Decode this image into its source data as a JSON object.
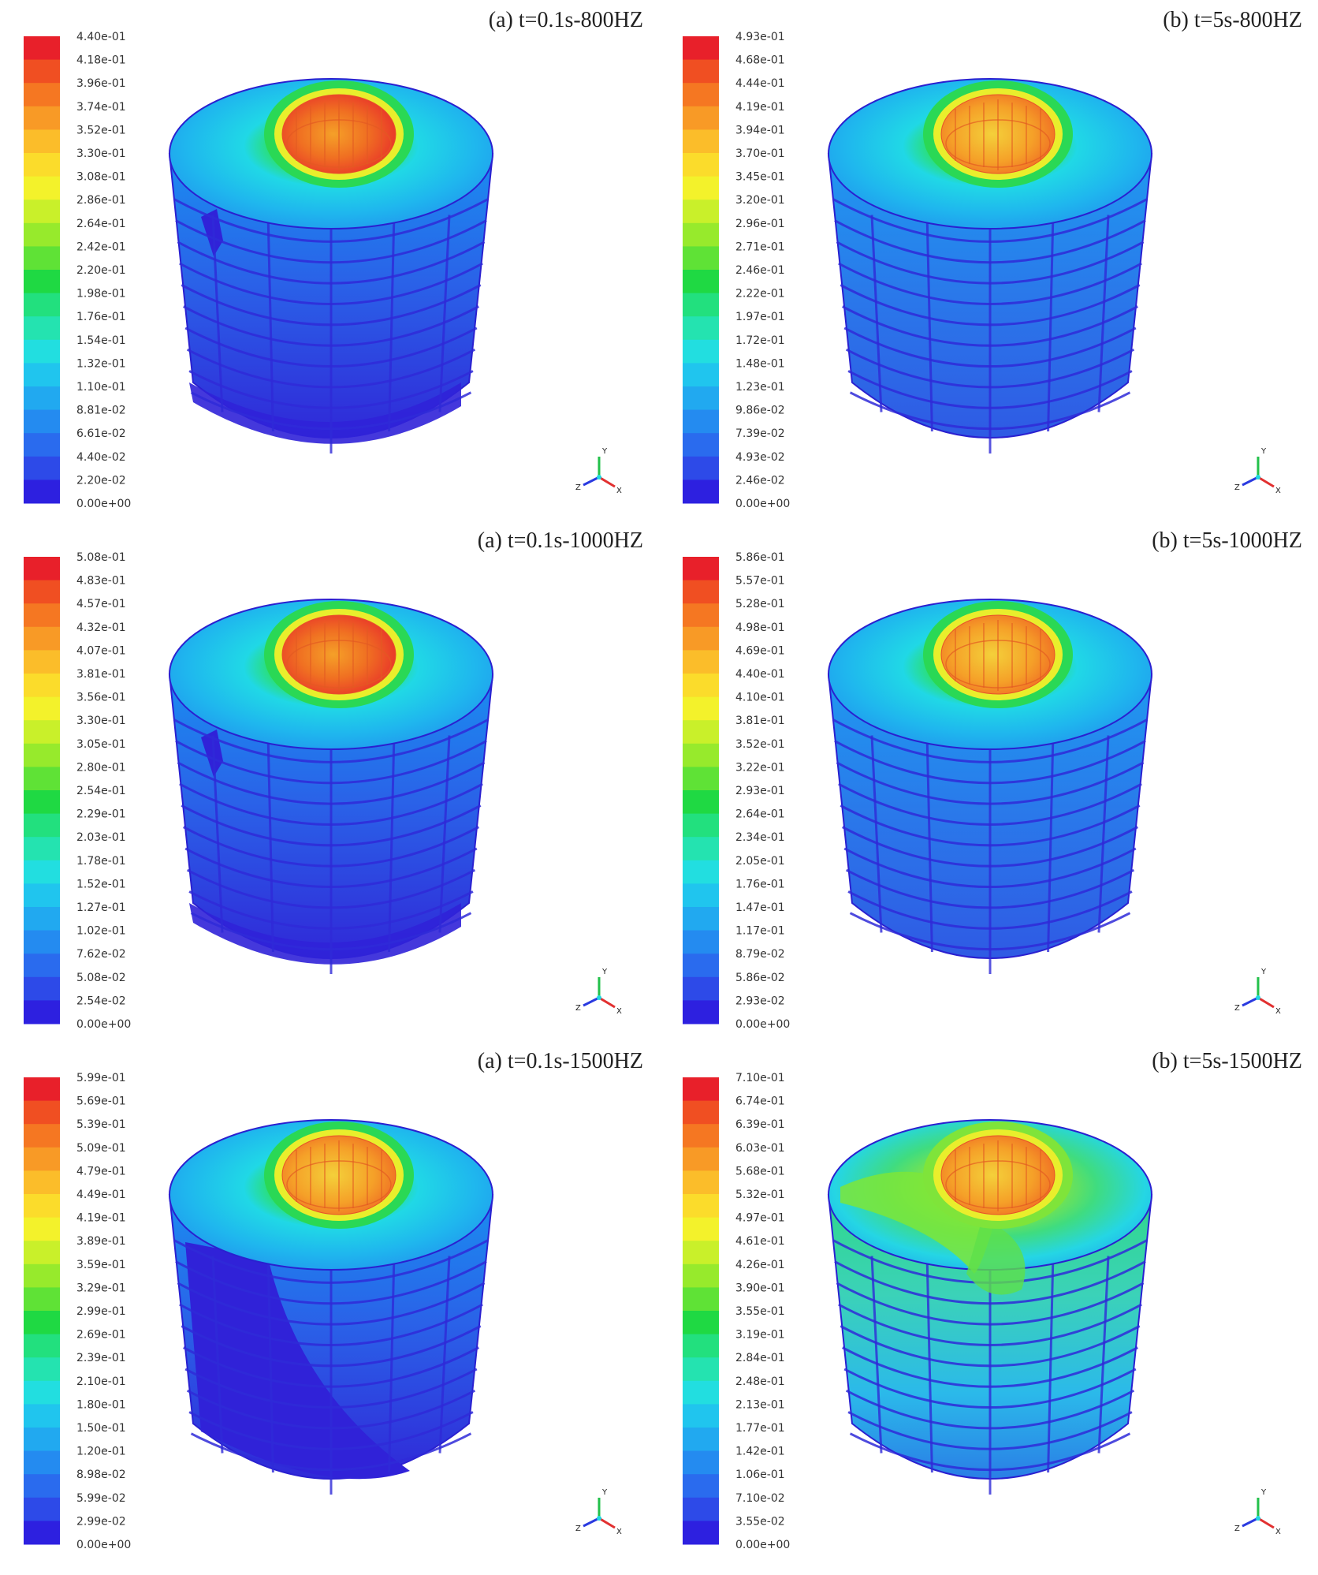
{
  "figure": {
    "panels": [
      {
        "title": "(a) t=0.1s-800HZ",
        "ticks": [
          "4.40e-01",
          "4.18e-01",
          "3.96e-01",
          "3.74e-01",
          "3.52e-01",
          "3.30e-01",
          "3.08e-01",
          "2.86e-01",
          "2.64e-01",
          "2.42e-01",
          "2.20e-01",
          "1.98e-01",
          "1.76e-01",
          "1.54e-01",
          "1.32e-01",
          "1.10e-01",
          "8.81e-02",
          "6.61e-02",
          "4.40e-02",
          "2.20e-02",
          "0.00e+00"
        ],
        "pattern": "low-blotch"
      },
      {
        "title": "(b) t=5s-800HZ",
        "ticks": [
          "4.93e-01",
          "4.68e-01",
          "4.44e-01",
          "4.19e-01",
          "3.94e-01",
          "3.70e-01",
          "3.45e-01",
          "3.20e-01",
          "2.96e-01",
          "2.71e-01",
          "2.46e-01",
          "2.22e-01",
          "1.97e-01",
          "1.72e-01",
          "1.48e-01",
          "1.23e-01",
          "9.86e-02",
          "7.39e-02",
          "4.93e-02",
          "2.46e-02",
          "0.00e+00"
        ],
        "pattern": "uniform"
      },
      {
        "title": "(a) t=0.1s-1000HZ",
        "ticks": [
          "5.08e-01",
          "4.83e-01",
          "4.57e-01",
          "4.32e-01",
          "4.07e-01",
          "3.81e-01",
          "3.56e-01",
          "3.30e-01",
          "3.05e-01",
          "2.80e-01",
          "2.54e-01",
          "2.29e-01",
          "2.03e-01",
          "1.78e-01",
          "1.52e-01",
          "1.27e-01",
          "1.02e-01",
          "7.62e-02",
          "5.08e-02",
          "2.54e-02",
          "0.00e+00"
        ],
        "pattern": "low-blotch"
      },
      {
        "title": "(b) t=5s-1000HZ",
        "ticks": [
          "5.86e-01",
          "5.57e-01",
          "5.28e-01",
          "4.98e-01",
          "4.69e-01",
          "4.40e-01",
          "4.10e-01",
          "3.81e-01",
          "3.52e-01",
          "3.22e-01",
          "2.93e-01",
          "2.64e-01",
          "2.34e-01",
          "2.05e-01",
          "1.76e-01",
          "1.47e-01",
          "1.17e-01",
          "8.79e-02",
          "5.86e-02",
          "2.93e-02",
          "0.00e+00"
        ],
        "pattern": "uniform"
      },
      {
        "title": "(a) t=0.1s-1500HZ",
        "ticks": [
          "5.99e-01",
          "5.69e-01",
          "5.39e-01",
          "5.09e-01",
          "4.79e-01",
          "4.49e-01",
          "4.19e-01",
          "3.89e-01",
          "3.59e-01",
          "3.29e-01",
          "2.99e-01",
          "2.69e-01",
          "2.39e-01",
          "2.10e-01",
          "1.80e-01",
          "1.50e-01",
          "1.20e-01",
          "8.98e-02",
          "5.99e-02",
          "2.99e-02",
          "0.00e+00"
        ],
        "pattern": "large-blotch"
      },
      {
        "title": "(b) t=5s-1500HZ",
        "ticks": [
          "7.10e-01",
          "6.74e-01",
          "6.39e-01",
          "6.03e-01",
          "5.68e-01",
          "5.32e-01",
          "4.97e-01",
          "4.61e-01",
          "4.26e-01",
          "3.90e-01",
          "3.55e-01",
          "3.19e-01",
          "2.84e-01",
          "2.48e-01",
          "2.13e-01",
          "1.77e-01",
          "1.42e-01",
          "1.06e-01",
          "7.10e-02",
          "3.55e-02",
          "0.00e+00"
        ],
        "pattern": "green-top"
      }
    ],
    "axis_triad": {
      "labels": [
        "Y",
        "Z",
        "X"
      ]
    },
    "colorbar_colors": [
      "#e8202a",
      "#f04f22",
      "#f57722",
      "#f89a26",
      "#fbbd2a",
      "#fbdc2b",
      "#f3f22b",
      "#c9f02a",
      "#97ea2c",
      "#5fe236",
      "#1fd943",
      "#22e07e",
      "#24e3b0",
      "#22dee0",
      "#20c5ee",
      "#21a9f0",
      "#248bf0",
      "#2a6bee",
      "#2d4ae8",
      "#2d20e0"
    ]
  }
}
